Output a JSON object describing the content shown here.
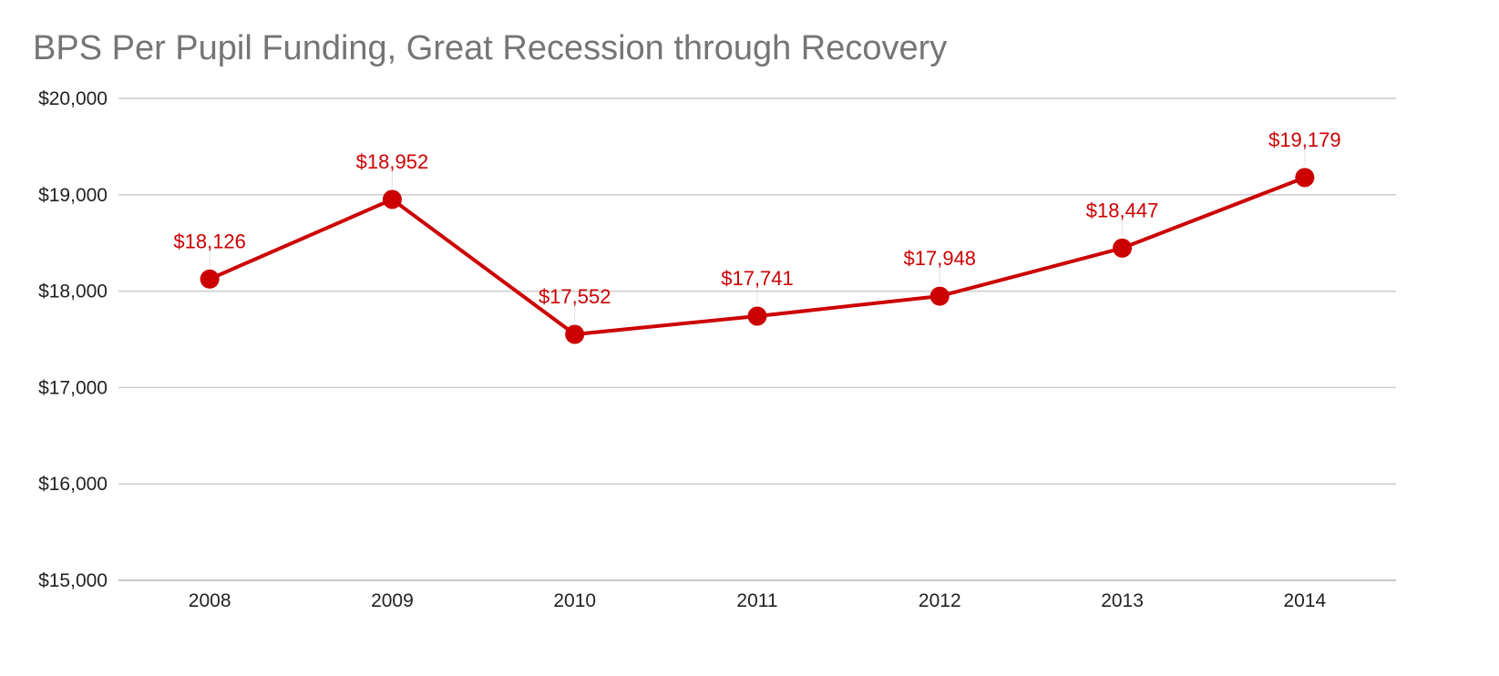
{
  "chart_data": {
    "type": "line",
    "title": "BPS Per Pupil Funding, Great Recession through Recovery",
    "xlabel": "",
    "ylabel": "",
    "categories": [
      "2008",
      "2009",
      "2010",
      "2011",
      "2012",
      "2013",
      "2014"
    ],
    "series": [
      {
        "values": [
          18126,
          18952,
          17552,
          17741,
          17948,
          18447,
          19179
        ],
        "data_labels": [
          "$18,126",
          "$18,952",
          "$17,552",
          "$17,741",
          "$17,948",
          "$18,447",
          "$19,179"
        ],
        "color": "#cc0000"
      }
    ],
    "ylim": [
      15000,
      20000
    ],
    "yticks": [
      15000,
      16000,
      17000,
      18000,
      19000,
      20000
    ],
    "ytick_labels": [
      "$15,000",
      "$16,000",
      "$17,000",
      "$18,000",
      "$19,000",
      "$20,000"
    ],
    "grid": true,
    "legend": "none"
  }
}
